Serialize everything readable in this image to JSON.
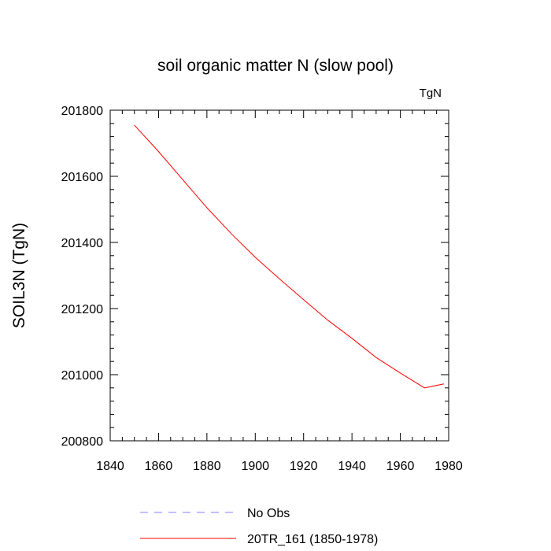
{
  "chart_data": {
    "type": "line",
    "title": "soil organic matter N (slow pool)",
    "units": "TgN",
    "xlabel": "",
    "ylabel": "SOIL3N  (TgN)",
    "xlim": [
      1840,
      1980
    ],
    "ylim": [
      200800,
      201800
    ],
    "xticks": [
      1840,
      1860,
      1880,
      1900,
      1920,
      1940,
      1960,
      1980
    ],
    "yticks": [
      200800,
      201000,
      201200,
      201400,
      201600,
      201800
    ],
    "series": [
      {
        "name": "20TR_161 (1850-1978)",
        "color": "#ff0000",
        "style": "solid",
        "x": [
          1850,
          1860,
          1870,
          1880,
          1890,
          1900,
          1910,
          1920,
          1930,
          1940,
          1950,
          1960,
          1970,
          1978
        ],
        "y": [
          201755,
          201675,
          201590,
          201505,
          201427,
          201355,
          201290,
          201227,
          201165,
          201110,
          201052,
          201005,
          200960,
          200972
        ]
      }
    ],
    "legend": [
      {
        "label": "No Obs",
        "color": "#8080ff",
        "style": "dashed"
      },
      {
        "label": "20TR_161 (1850-1978)",
        "color": "#ff0000",
        "style": "solid"
      }
    ],
    "legend_position": "bottom"
  }
}
